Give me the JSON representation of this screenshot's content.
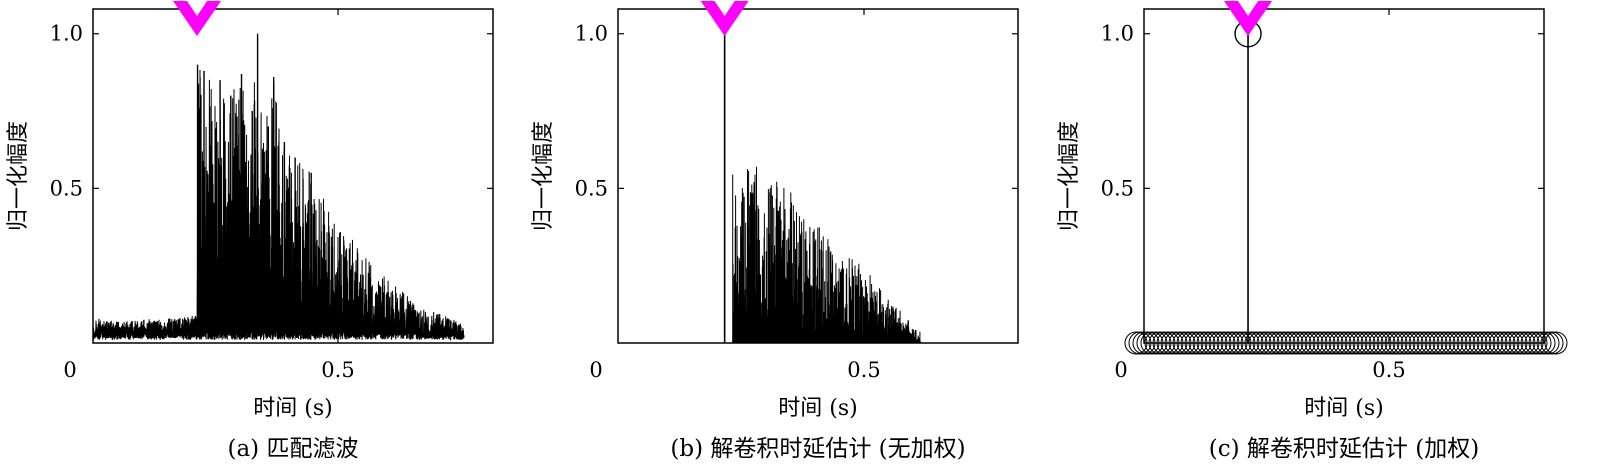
{
  "chart_data": [
    {
      "type": "line",
      "subplot_label": "(a)",
      "caption": "(a) 匹配滤波",
      "xlabel": "时间 (s)",
      "ylabel": "归一化幅度",
      "xlim": [
        0,
        0.8
      ],
      "ylim": [
        0,
        1.08
      ],
      "xticks": [
        0,
        0.5
      ],
      "xtick_labels": [
        "0",
        "0.5"
      ],
      "yticks": [
        0.5,
        1.0
      ],
      "ytick_labels": [
        "0.5",
        "1.0"
      ],
      "marker_time": 0.237,
      "marker_color": "#ff00ff",
      "series": [
        {
          "x": [
            0.0,
            0.05,
            0.1,
            0.15,
            0.2,
            0.237,
            0.238,
            0.25,
            0.28,
            0.3,
            0.32,
            0.34,
            0.35,
            0.37,
            0.38,
            0.4,
            0.42,
            0.45,
            0.48,
            0.5,
            0.55,
            0.6,
            0.65,
            0.7,
            0.75
          ],
          "values": [
            0.07,
            0.08,
            0.07,
            0.08,
            0.08,
            0.09,
            0.9,
            0.88,
            0.85,
            0.8,
            0.87,
            0.75,
            1.0,
            0.7,
            0.86,
            0.65,
            0.6,
            0.55,
            0.45,
            0.4,
            0.28,
            0.2,
            0.12,
            0.09,
            0.05
          ]
        }
      ]
    },
    {
      "type": "line",
      "subplot_label": "(b)",
      "caption": "(b) 解卷积时延估计 (无加权)",
      "xlabel": "时间 (s)",
      "ylabel": "归一化幅度",
      "xlim": [
        0,
        0.8
      ],
      "ylim": [
        0,
        1.08
      ],
      "xticks": [
        0,
        0.5
      ],
      "xtick_labels": [
        "0",
        "0.5"
      ],
      "yticks": [
        0.5,
        1.0
      ],
      "ytick_labels": [
        "0.5",
        "1.0"
      ],
      "marker_time": 0.24,
      "marker_color": "#ff00ff",
      "series": [
        {
          "x": [
            0.24,
            0.26,
            0.27,
            0.28,
            0.29,
            0.3,
            0.31,
            0.32,
            0.33,
            0.34,
            0.35,
            0.36,
            0.38,
            0.4,
            0.42,
            0.44,
            0.46,
            0.48,
            0.5,
            0.52,
            0.54,
            0.56,
            0.58,
            0.6
          ],
          "values": [
            1.0,
            0.5,
            0.48,
            0.55,
            0.6,
            0.62,
            0.57,
            0.55,
            0.58,
            0.5,
            0.52,
            0.5,
            0.45,
            0.4,
            0.38,
            0.32,
            0.3,
            0.27,
            0.25,
            0.2,
            0.15,
            0.12,
            0.08,
            0.04
          ]
        }
      ]
    },
    {
      "type": "scatter",
      "subplot_label": "(c)",
      "caption": "(c) 解卷积时延估计 (加权)",
      "xlabel": "时间 (s)",
      "ylabel": "归一化幅度",
      "xlim": [
        0,
        0.8
      ],
      "ylim": [
        0,
        1.08
      ],
      "xticks": [
        0,
        0.5
      ],
      "xtick_labels": [
        "0",
        "0.5"
      ],
      "yticks": [
        0.5,
        1.0
      ],
      "ytick_labels": [
        "0.5",
        "1.0"
      ],
      "marker_time": 0.237,
      "marker_color": "#ff00ff",
      "series": [
        {
          "peak_x": 0.237,
          "peak_value": 1.0,
          "baseline_value": 0.0,
          "baseline_range": [
            0.0,
            0.8
          ]
        }
      ]
    }
  ]
}
